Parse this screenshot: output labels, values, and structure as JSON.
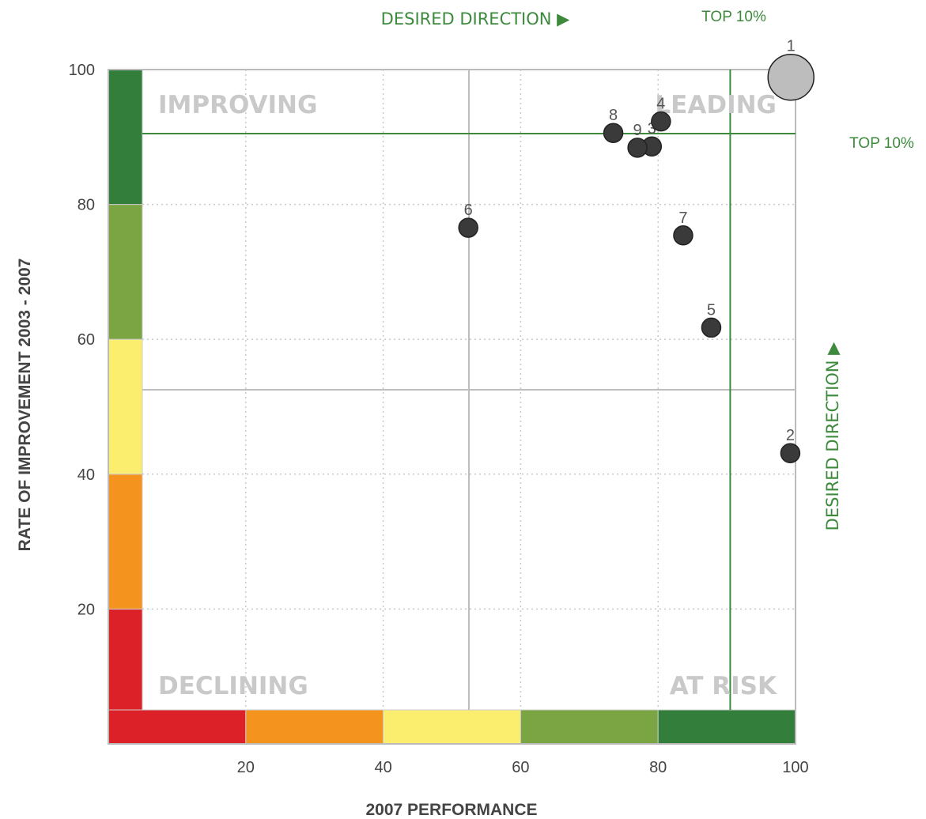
{
  "chart_data": {
    "type": "scatter",
    "xlabel": "2007 PERFORMANCE",
    "ylabel": "RATE OF IMPROVEMENT 2003 - 2007",
    "xlim": [
      0,
      100
    ],
    "ylim": [
      0,
      100
    ],
    "x_ticks": [
      "20",
      "40",
      "60",
      "80",
      "100"
    ],
    "y_ticks": [
      "20",
      "40",
      "60",
      "80",
      "100"
    ],
    "grid": "dotted",
    "quadrant_labels": {
      "top_left": "IMPROVING",
      "top_right": "LEADING",
      "bottom_left": "DECLINING",
      "bottom_right": "AT RISK"
    },
    "direction_label_top": "DESIRED DIRECTION ▶",
    "direction_label_right": "DESIRED DIRECTION ▶",
    "top10_label_x": "TOP 10%",
    "top10_label_y": "TOP 10%",
    "midline_x": 50,
    "midline_y": 50,
    "top10_x": 90,
    "top10_y": 90,
    "color_bands": [
      {
        "from": 0,
        "to": 20,
        "color": "#dc2128"
      },
      {
        "from": 20,
        "to": 40,
        "color": "#f5931f"
      },
      {
        "from": 40,
        "to": 60,
        "color": "#fbee6e"
      },
      {
        "from": 60,
        "to": 80,
        "color": "#7ba443"
      },
      {
        "from": 80,
        "to": 100,
        "color": "#337e3b"
      }
    ],
    "points": [
      {
        "label": "1",
        "x": 99.3,
        "y": 98.8,
        "highlight": true
      },
      {
        "label": "2",
        "x": 99.2,
        "y": 40.1
      },
      {
        "label": "3",
        "x": 78,
        "y": 88
      },
      {
        "label": "4",
        "x": 79.4,
        "y": 91.9
      },
      {
        "label": "5",
        "x": 87.1,
        "y": 59.7
      },
      {
        "label": "6",
        "x": 49.9,
        "y": 75.3
      },
      {
        "label": "7",
        "x": 82.8,
        "y": 74.1
      },
      {
        "label": "8",
        "x": 72.1,
        "y": 90.1
      },
      {
        "label": "9",
        "x": 75.8,
        "y": 87.8
      }
    ],
    "point_color": "#3a3a3a",
    "highlight_color": "#bdbdbd",
    "top10_color": "#3d8a3d"
  }
}
